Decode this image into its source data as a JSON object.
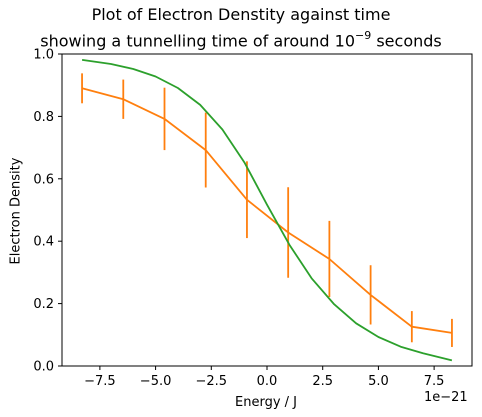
{
  "chart_data": {
    "type": "line",
    "title_line1": "Plot of Electron Denstity against time",
    "title_line2_prefix": "showing a tunnelling time of around 10",
    "title_line2_exp": "−9",
    "title_line2_suffix": " seconds",
    "xlabel": "Energy / J",
    "ylabel": "Electron Density",
    "x_offset_label": "1e−21",
    "xlim": [
      -9.2,
      9.2
    ],
    "ylim": [
      0.0,
      1.0
    ],
    "x_ticks": [
      -7.5,
      -5.0,
      -2.5,
      0.0,
      2.5,
      5.0,
      7.5
    ],
    "x_tick_labels": [
      "−7.5",
      "−5.0",
      "−2.5",
      "0.0",
      "2.5",
      "5.0",
      "7.5"
    ],
    "y_ticks": [
      0.0,
      0.2,
      0.4,
      0.6,
      0.8,
      1.0
    ],
    "y_tick_labels": [
      "0.0",
      "0.2",
      "0.4",
      "0.6",
      "0.8",
      "1.0"
    ],
    "grid": false,
    "series": [
      {
        "kind": "errorbar",
        "color": "#ff7f0e",
        "x": [
          -8.3,
          -6.45,
          -4.6,
          -2.75,
          -0.9,
          0.95,
          2.8,
          4.65,
          6.5,
          8.3
        ],
        "y": [
          0.89,
          0.855,
          0.792,
          0.692,
          0.533,
          0.428,
          0.343,
          0.228,
          0.126,
          0.106
        ],
        "yerr": [
          0.048,
          0.063,
          0.1,
          0.12,
          0.123,
          0.145,
          0.122,
          0.095,
          0.05,
          0.045
        ]
      },
      {
        "kind": "line",
        "color": "#2ca02c",
        "x": [
          -8.3,
          -7.0,
          -6.0,
          -5.0,
          -4.0,
          -3.0,
          -2.0,
          -1.0,
          0.0,
          1.0,
          2.0,
          3.0,
          4.0,
          5.0,
          6.0,
          7.0,
          8.3
        ],
        "y": [
          0.981,
          0.968,
          0.952,
          0.928,
          0.891,
          0.837,
          0.758,
          0.651,
          0.517,
          0.389,
          0.281,
          0.199,
          0.137,
          0.093,
          0.062,
          0.041,
          0.018
        ]
      }
    ]
  }
}
